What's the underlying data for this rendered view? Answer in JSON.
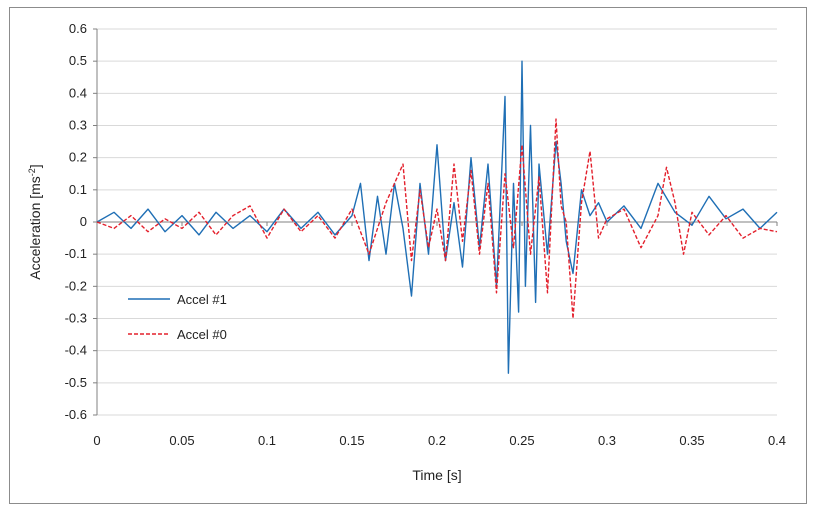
{
  "chart_data": {
    "type": "line",
    "title": "",
    "xlabel": "Time [s]",
    "ylabel_main": "Acceleration [ms",
    "ylabel_sup": "-2",
    "ylabel_close": "]",
    "xlim": [
      0,
      0.4
    ],
    "ylim": [
      -0.6,
      0.6
    ],
    "grid": "horizontal",
    "x_ticks": [
      0,
      0.05,
      0.1,
      0.15,
      0.2,
      0.25,
      0.3,
      0.35,
      0.4
    ],
    "x_tick_labels": [
      "0",
      "0.05",
      "0.1",
      "0.15",
      "0.2",
      "0.25",
      "0.3",
      "0.35",
      "0.4"
    ],
    "y_ticks": [
      0.6,
      0.5,
      0.4,
      0.3,
      0.2,
      0.1,
      0,
      -0.1,
      -0.2,
      -0.3,
      -0.4,
      -0.5,
      -0.6
    ],
    "y_tick_labels": [
      "0.6",
      "0.5",
      "0.4",
      "0.3",
      "0.2",
      "0.1",
      "0",
      "-0.1",
      "-0.2",
      "-0.3",
      "-0.4",
      "-0.5",
      "-0.6"
    ],
    "legend_placement": "lower-left",
    "series": [
      {
        "name": "Accel #1",
        "color": "#1f6fb5",
        "style": "solid",
        "x": [
          0,
          0.01,
          0.02,
          0.03,
          0.04,
          0.05,
          0.06,
          0.07,
          0.08,
          0.09,
          0.1,
          0.11,
          0.12,
          0.13,
          0.14,
          0.15,
          0.155,
          0.16,
          0.165,
          0.17,
          0.175,
          0.18,
          0.185,
          0.19,
          0.195,
          0.2,
          0.205,
          0.21,
          0.215,
          0.22,
          0.225,
          0.23,
          0.235,
          0.238,
          0.24,
          0.242,
          0.245,
          0.248,
          0.25,
          0.252,
          0.255,
          0.258,
          0.26,
          0.265,
          0.27,
          0.273,
          0.276,
          0.28,
          0.285,
          0.29,
          0.295,
          0.3,
          0.31,
          0.32,
          0.33,
          0.34,
          0.35,
          0.36,
          0.37,
          0.38,
          0.39,
          0.4
        ],
        "y": [
          0,
          0.03,
          -0.02,
          0.04,
          -0.03,
          0.02,
          -0.04,
          0.03,
          -0.02,
          0.02,
          -0.03,
          0.04,
          -0.02,
          0.03,
          -0.04,
          0.02,
          0.12,
          -0.12,
          0.08,
          -0.1,
          0.12,
          -0.02,
          -0.23,
          0.12,
          -0.1,
          0.24,
          -0.12,
          0.06,
          -0.14,
          0.2,
          -0.08,
          0.18,
          -0.2,
          0.15,
          0.39,
          -0.47,
          0.12,
          -0.28,
          0.5,
          -0.2,
          0.3,
          -0.25,
          0.18,
          -0.1,
          0.25,
          0.12,
          -0.06,
          -0.16,
          0.1,
          0.02,
          0.06,
          0.0,
          0.05,
          -0.02,
          0.12,
          0.03,
          -0.01,
          0.08,
          0.01,
          0.04,
          -0.02,
          0.03
        ]
      },
      {
        "name": "Accel #0",
        "color": "#e3202c",
        "style": "dashed",
        "x": [
          0,
          0.01,
          0.02,
          0.03,
          0.04,
          0.05,
          0.06,
          0.07,
          0.08,
          0.09,
          0.1,
          0.11,
          0.12,
          0.13,
          0.14,
          0.15,
          0.16,
          0.17,
          0.18,
          0.185,
          0.19,
          0.195,
          0.2,
          0.205,
          0.21,
          0.215,
          0.22,
          0.225,
          0.23,
          0.235,
          0.24,
          0.245,
          0.25,
          0.255,
          0.26,
          0.265,
          0.27,
          0.273,
          0.276,
          0.28,
          0.285,
          0.29,
          0.295,
          0.3,
          0.31,
          0.32,
          0.33,
          0.335,
          0.34,
          0.345,
          0.35,
          0.36,
          0.37,
          0.38,
          0.39,
          0.4
        ],
        "y": [
          0,
          -0.02,
          0.02,
          -0.03,
          0.01,
          -0.02,
          0.03,
          -0.04,
          0.02,
          0.05,
          -0.05,
          0.04,
          -0.03,
          0.02,
          -0.05,
          0.04,
          -0.1,
          0.06,
          0.18,
          -0.12,
          0.1,
          -0.08,
          0.04,
          -0.12,
          0.18,
          -0.06,
          0.16,
          -0.1,
          0.12,
          -0.22,
          0.15,
          -0.08,
          0.24,
          -0.1,
          0.14,
          -0.22,
          0.32,
          0.05,
          0.0,
          -0.3,
          0.06,
          0.22,
          -0.05,
          0.01,
          0.04,
          -0.08,
          0.02,
          0.17,
          0.06,
          -0.1,
          0.03,
          -0.04,
          0.02,
          -0.05,
          -0.02,
          -0.03
        ]
      }
    ]
  }
}
